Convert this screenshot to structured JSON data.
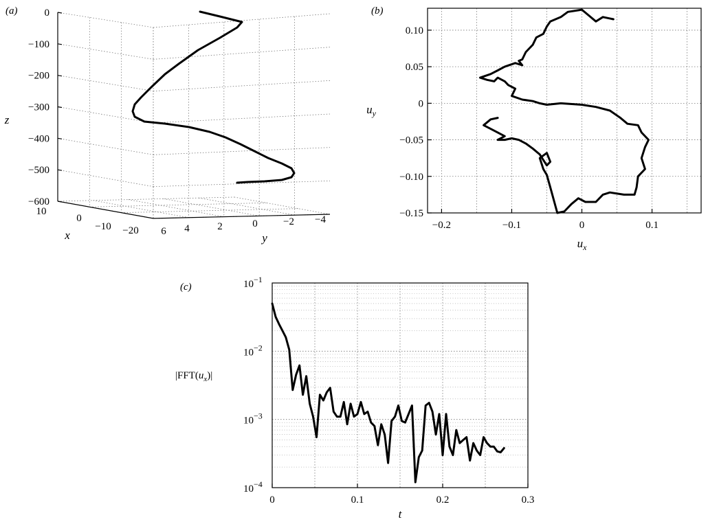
{
  "chart_data": [
    {
      "panel": "(a)",
      "type": "line3d",
      "xlabel": "x",
      "ylabel": "y",
      "zlabel": "z",
      "xlim": [
        -20,
        10
      ],
      "ylim": [
        -4,
        6
      ],
      "zlim": [
        -600,
        0
      ],
      "x_ticks": [
        "10",
        "0",
        "−10",
        "−20"
      ],
      "y_ticks": [
        "6",
        "4",
        "2",
        "0",
        "−2",
        "−4"
      ],
      "z_ticks": [
        "0",
        "−100",
        "−200",
        "−300",
        "−400",
        "−500",
        "−600"
      ],
      "grid": true,
      "series": [
        {
          "z": [
            -10,
            -50,
            -100,
            -150,
            -200,
            -250,
            -300,
            -350,
            -400,
            -450,
            -500,
            -550
          ],
          "helix": true
        }
      ]
    },
    {
      "panel": "(b)",
      "type": "line",
      "xlabel": "u_x",
      "ylabel": "u_y",
      "xlim": [
        -0.22,
        0.17
      ],
      "ylim": [
        -0.15,
        0.13
      ],
      "x_ticks": [
        "−0.2",
        "−0.1",
        "0",
        "0.1"
      ],
      "y_ticks": [
        "0.10",
        "0.05",
        "0",
        "−0.05",
        "−0.10",
        "−0.15"
      ],
      "grid": true,
      "series": [
        {
          "points": [
            [
              0.045,
              0.115
            ],
            [
              0.03,
              0.118
            ],
            [
              0.02,
              0.112
            ],
            [
              0.01,
              0.12
            ],
            [
              0.0,
              0.128
            ],
            [
              -0.02,
              0.125
            ],
            [
              -0.03,
              0.118
            ],
            [
              -0.045,
              0.112
            ],
            [
              -0.05,
              0.105
            ],
            [
              -0.055,
              0.095
            ],
            [
              -0.065,
              0.09
            ],
            [
              -0.07,
              0.08
            ],
            [
              -0.075,
              0.075
            ],
            [
              -0.08,
              0.07
            ],
            [
              -0.085,
              0.06
            ],
            [
              -0.09,
              0.058
            ],
            [
              -0.085,
              0.052
            ],
            [
              -0.095,
              0.055
            ],
            [
              -0.11,
              0.05
            ],
            [
              -0.12,
              0.045
            ],
            [
              -0.13,
              0.04
            ],
            [
              -0.145,
              0.035
            ],
            [
              -0.135,
              0.032
            ],
            [
              -0.125,
              0.03
            ],
            [
              -0.12,
              0.035
            ],
            [
              -0.11,
              0.03
            ],
            [
              -0.105,
              0.025
            ],
            [
              -0.095,
              0.02
            ],
            [
              -0.1,
              0.01
            ],
            [
              -0.085,
              0.005
            ],
            [
              -0.07,
              0.003
            ],
            [
              -0.06,
              0.0
            ],
            [
              -0.05,
              -0.002
            ],
            [
              -0.03,
              0.0
            ],
            [
              0.0,
              -0.002
            ],
            [
              0.02,
              -0.005
            ],
            [
              0.04,
              -0.01
            ],
            [
              0.055,
              -0.02
            ],
            [
              0.065,
              -0.028
            ],
            [
              0.08,
              -0.03
            ],
            [
              0.085,
              -0.04
            ],
            [
              0.095,
              -0.05
            ],
            [
              0.09,
              -0.06
            ],
            [
              0.085,
              -0.075
            ],
            [
              0.09,
              -0.09
            ],
            [
              0.08,
              -0.1
            ],
            [
              0.078,
              -0.115
            ],
            [
              0.075,
              -0.125
            ],
            [
              0.06,
              -0.125
            ],
            [
              0.04,
              -0.122
            ],
            [
              0.03,
              -0.125
            ],
            [
              0.02,
              -0.135
            ],
            [
              0.005,
              -0.135
            ],
            [
              -0.005,
              -0.13
            ],
            [
              -0.015,
              -0.138
            ],
            [
              -0.025,
              -0.148
            ],
            [
              -0.035,
              -0.15
            ],
            [
              -0.045,
              -0.115
            ],
            [
              -0.05,
              -0.098
            ],
            [
              -0.055,
              -0.09
            ],
            [
              -0.06,
              -0.075
            ],
            [
              -0.05,
              -0.068
            ],
            [
              -0.045,
              -0.08
            ],
            [
              -0.05,
              -0.085
            ],
            [
              -0.06,
              -0.07
            ],
            [
              -0.07,
              -0.062
            ],
            [
              -0.08,
              -0.055
            ],
            [
              -0.09,
              -0.05
            ],
            [
              -0.1,
              -0.048
            ],
            [
              -0.11,
              -0.05
            ],
            [
              -0.12,
              -0.05
            ],
            [
              -0.11,
              -0.045
            ],
            [
              -0.12,
              -0.04
            ],
            [
              -0.13,
              -0.035
            ],
            [
              -0.14,
              -0.03
            ],
            [
              -0.13,
              -0.022
            ],
            [
              -0.12,
              -0.02
            ]
          ]
        }
      ]
    },
    {
      "panel": "(c)",
      "type": "line",
      "xlabel": "t",
      "ylabel": "|FFT(u_x)|",
      "xlim": [
        0,
        0.3
      ],
      "ylim": [
        0.0001,
        0.1
      ],
      "yscale": "log",
      "x_ticks": [
        "0",
        "0.1",
        "0.2",
        "0.3"
      ],
      "y_ticks": [
        "10^-1",
        "10^-2",
        "10^-3",
        "10^-4"
      ],
      "grid": true,
      "series": [
        {
          "x": [
            0,
            0.004,
            0.008,
            0.012,
            0.016,
            0.02,
            0.024,
            0.028,
            0.032,
            0.036,
            0.04,
            0.044,
            0.048,
            0.052,
            0.056,
            0.06,
            0.064,
            0.068,
            0.072,
            0.076,
            0.08,
            0.084,
            0.088,
            0.092,
            0.096,
            0.1,
            0.104,
            0.108,
            0.112,
            0.116,
            0.12,
            0.124,
            0.128,
            0.132,
            0.136,
            0.14,
            0.144,
            0.148,
            0.152,
            0.156,
            0.16,
            0.164,
            0.168,
            0.172,
            0.176,
            0.18,
            0.184,
            0.188,
            0.192,
            0.196,
            0.2,
            0.204,
            0.208,
            0.212,
            0.216,
            0.22,
            0.224,
            0.228,
            0.232,
            0.236,
            0.24,
            0.244,
            0.248,
            0.252,
            0.256,
            0.26,
            0.264,
            0.268,
            0.272
          ],
          "y": [
            0.05,
            0.032,
            0.025,
            0.02,
            0.016,
            0.0105,
            0.0027,
            0.0045,
            0.0062,
            0.0023,
            0.0043,
            0.0017,
            0.0011,
            0.00055,
            0.0023,
            0.0019,
            0.0025,
            0.0029,
            0.0013,
            0.0011,
            0.0011,
            0.0018,
            0.00085,
            0.0017,
            0.0011,
            0.0012,
            0.0018,
            0.0012,
            0.0013,
            0.0009,
            0.0008,
            0.00042,
            0.00085,
            0.0006,
            0.00023,
            0.00095,
            0.0011,
            0.0016,
            0.00095,
            0.0009,
            0.0012,
            0.0016,
            0.00012,
            0.00028,
            0.00035,
            0.0016,
            0.00175,
            0.0013,
            0.0006,
            0.0012,
            0.0003,
            0.0012,
            0.0004,
            0.0003,
            0.0007,
            0.00045,
            0.0005,
            0.00055,
            0.00025,
            0.00045,
            0.00035,
            0.0003,
            0.00055,
            0.00045,
            0.0004,
            0.0004,
            0.00034,
            0.00033,
            0.00038
          ]
        }
      ]
    }
  ]
}
